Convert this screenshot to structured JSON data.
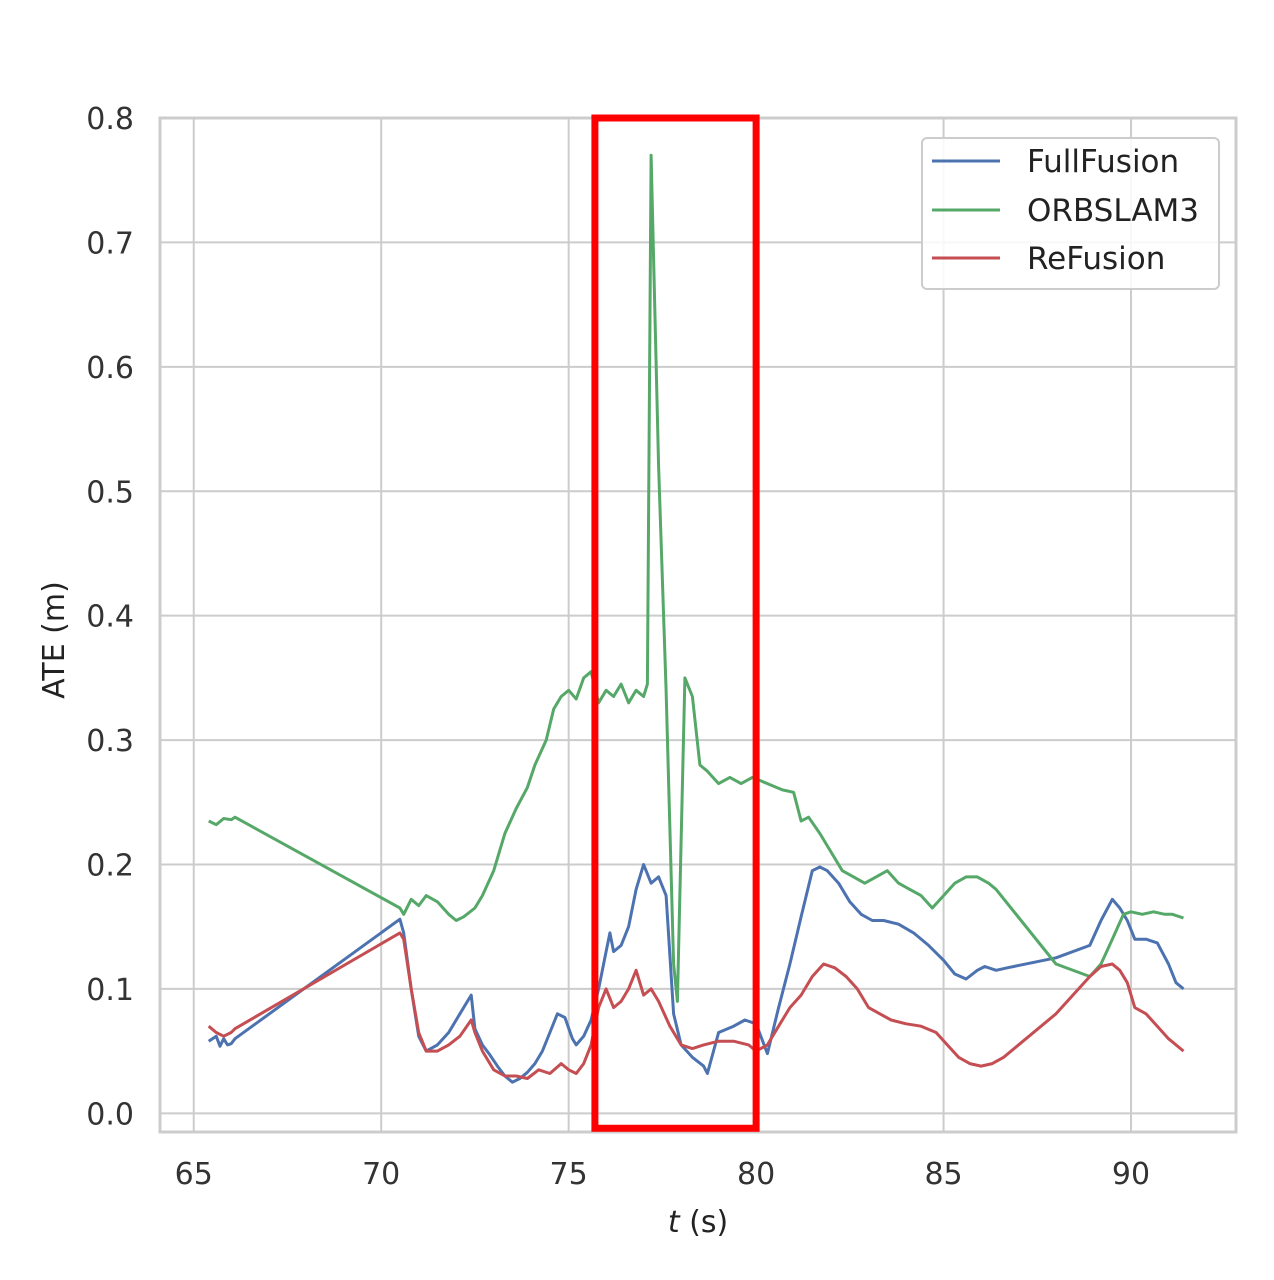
{
  "chart_data": {
    "type": "line",
    "title": "",
    "xlabel": "t (s)",
    "xlabel_italic_part": "t",
    "xlabel_unit": " (s)",
    "ylabel": "ATE (m)",
    "xlim": [
      64.1,
      92.8
    ],
    "ylim": [
      -0.015,
      0.8
    ],
    "x_ticks": [
      65,
      70,
      75,
      80,
      85,
      90
    ],
    "x_tick_labels": [
      "65",
      "70",
      "75",
      "80",
      "85",
      "90"
    ],
    "y_ticks": [
      0.0,
      0.1,
      0.2,
      0.3,
      0.4,
      0.5,
      0.6,
      0.7,
      0.8
    ],
    "y_tick_labels": [
      "0.0",
      "0.1",
      "0.2",
      "0.3",
      "0.4",
      "0.5",
      "0.6",
      "0.7",
      "0.8"
    ],
    "grid": true,
    "legend_position": "top-right",
    "highlight_box": {
      "x_range": [
        75.7,
        80.0
      ],
      "y_range": [
        -0.012,
        0.8
      ],
      "color": "#ff0000"
    },
    "series": [
      {
        "name": "FullFusion",
        "color": "#4c72b0",
        "x": [
          65.4,
          65.6,
          65.7,
          65.8,
          65.9,
          66.0,
          66.1,
          70.5,
          70.6,
          70.8,
          71.0,
          71.2,
          71.5,
          71.8,
          72.1,
          72.4,
          72.5,
          72.7,
          72.9,
          73.1,
          73.3,
          73.5,
          73.7,
          73.9,
          74.1,
          74.3,
          74.5,
          74.7,
          74.9,
          75.1,
          75.2,
          75.4,
          75.6,
          75.8,
          76.0,
          76.1,
          76.2,
          76.4,
          76.6,
          76.8,
          77.0,
          77.2,
          77.4,
          77.6,
          77.8,
          78.0,
          78.3,
          78.6,
          78.7,
          79.0,
          79.4,
          79.7,
          80.0,
          80.3,
          80.6,
          80.9,
          81.2,
          81.5,
          81.7,
          81.9,
          82.2,
          82.5,
          82.8,
          83.1,
          83.4,
          83.8,
          84.2,
          84.6,
          85.0,
          85.3,
          85.6,
          85.9,
          86.1,
          86.4,
          86.7,
          88.0,
          88.9,
          89.2,
          89.5,
          89.7,
          89.9,
          90.1,
          90.4,
          90.7,
          91.0,
          91.2,
          91.4
        ],
        "values": [
          0.058,
          0.062,
          0.054,
          0.06,
          0.055,
          0.056,
          0.06,
          0.156,
          0.145,
          0.1,
          0.062,
          0.05,
          0.055,
          0.065,
          0.08,
          0.095,
          0.068,
          0.055,
          0.047,
          0.038,
          0.03,
          0.025,
          0.028,
          0.033,
          0.04,
          0.05,
          0.065,
          0.08,
          0.077,
          0.06,
          0.055,
          0.062,
          0.075,
          0.1,
          0.13,
          0.145,
          0.13,
          0.135,
          0.15,
          0.18,
          0.2,
          0.185,
          0.19,
          0.175,
          0.08,
          0.055,
          0.045,
          0.038,
          0.032,
          0.065,
          0.07,
          0.075,
          0.072,
          0.048,
          0.085,
          0.12,
          0.158,
          0.195,
          0.198,
          0.195,
          0.185,
          0.17,
          0.16,
          0.155,
          0.155,
          0.152,
          0.145,
          0.135,
          0.123,
          0.112,
          0.108,
          0.115,
          0.118,
          0.115,
          0.117,
          0.125,
          0.135,
          0.155,
          0.172,
          0.165,
          0.155,
          0.14,
          0.14,
          0.137,
          0.12,
          0.105,
          0.1
        ]
      },
      {
        "name": "ORBSLAM3",
        "color": "#55a868",
        "x": [
          65.4,
          65.6,
          65.8,
          66.0,
          66.1,
          70.5,
          70.6,
          70.8,
          71.0,
          71.2,
          71.5,
          71.8,
          72.0,
          72.2,
          72.5,
          72.7,
          73.0,
          73.3,
          73.6,
          73.9,
          74.1,
          74.4,
          74.6,
          74.8,
          75.0,
          75.2,
          75.4,
          75.6,
          75.8,
          76.0,
          76.2,
          76.4,
          76.6,
          76.8,
          77.0,
          77.1,
          77.2,
          77.4,
          77.6,
          77.8,
          77.9,
          78.1,
          78.3,
          78.5,
          78.7,
          79.0,
          79.3,
          79.6,
          79.9,
          80.3,
          80.7,
          81.0,
          81.2,
          81.4,
          81.7,
          82.0,
          82.3,
          82.6,
          82.9,
          83.2,
          83.5,
          83.8,
          84.1,
          84.4,
          84.7,
          85.0,
          85.3,
          85.6,
          85.9,
          86.2,
          86.4,
          88.0,
          88.9,
          89.2,
          89.5,
          89.8,
          90.0,
          90.3,
          90.6,
          90.9,
          91.1,
          91.4
        ],
        "values": [
          0.235,
          0.232,
          0.237,
          0.236,
          0.238,
          0.165,
          0.16,
          0.172,
          0.167,
          0.175,
          0.17,
          0.16,
          0.155,
          0.158,
          0.165,
          0.175,
          0.195,
          0.225,
          0.245,
          0.262,
          0.28,
          0.3,
          0.325,
          0.335,
          0.34,
          0.333,
          0.35,
          0.355,
          0.33,
          0.34,
          0.335,
          0.345,
          0.33,
          0.34,
          0.335,
          0.345,
          0.77,
          0.52,
          0.34,
          0.12,
          0.09,
          0.35,
          0.335,
          0.28,
          0.275,
          0.265,
          0.27,
          0.265,
          0.27,
          0.265,
          0.26,
          0.258,
          0.235,
          0.238,
          0.225,
          0.21,
          0.195,
          0.19,
          0.185,
          0.19,
          0.195,
          0.185,
          0.18,
          0.175,
          0.165,
          0.175,
          0.185,
          0.19,
          0.19,
          0.185,
          0.18,
          0.12,
          0.11,
          0.12,
          0.14,
          0.16,
          0.162,
          0.16,
          0.162,
          0.16,
          0.16,
          0.157
        ]
      },
      {
        "name": "ReFusion",
        "color": "#c44e52",
        "x": [
          65.4,
          65.6,
          65.8,
          66.0,
          66.1,
          70.5,
          70.6,
          70.8,
          71.0,
          71.2,
          71.5,
          71.8,
          72.1,
          72.4,
          72.5,
          72.7,
          73.0,
          73.3,
          73.6,
          73.9,
          74.2,
          74.5,
          74.8,
          75.0,
          75.2,
          75.4,
          75.6,
          75.8,
          76.0,
          76.2,
          76.4,
          76.6,
          76.8,
          77.0,
          77.2,
          77.4,
          77.7,
          78.0,
          78.3,
          78.6,
          79.0,
          79.4,
          79.8,
          80.0,
          80.3,
          80.6,
          80.9,
          81.2,
          81.5,
          81.8,
          82.1,
          82.4,
          82.7,
          83.0,
          83.3,
          83.6,
          84.0,
          84.4,
          84.8,
          85.1,
          85.4,
          85.7,
          86.0,
          86.3,
          86.6,
          88.0,
          88.9,
          89.2,
          89.5,
          89.7,
          89.9,
          90.1,
          90.4,
          90.7,
          91.0,
          91.2,
          91.4
        ],
        "values": [
          0.07,
          0.065,
          0.062,
          0.065,
          0.068,
          0.145,
          0.14,
          0.1,
          0.065,
          0.05,
          0.05,
          0.055,
          0.062,
          0.075,
          0.065,
          0.05,
          0.035,
          0.03,
          0.03,
          0.028,
          0.035,
          0.032,
          0.04,
          0.035,
          0.032,
          0.04,
          0.055,
          0.085,
          0.1,
          0.085,
          0.09,
          0.1,
          0.115,
          0.095,
          0.1,
          0.09,
          0.07,
          0.055,
          0.052,
          0.055,
          0.058,
          0.058,
          0.055,
          0.05,
          0.055,
          0.07,
          0.085,
          0.095,
          0.11,
          0.12,
          0.117,
          0.11,
          0.1,
          0.085,
          0.08,
          0.075,
          0.072,
          0.07,
          0.065,
          0.055,
          0.045,
          0.04,
          0.038,
          0.04,
          0.045,
          0.08,
          0.11,
          0.118,
          0.12,
          0.115,
          0.105,
          0.085,
          0.08,
          0.07,
          0.06,
          0.055,
          0.05
        ]
      }
    ]
  }
}
